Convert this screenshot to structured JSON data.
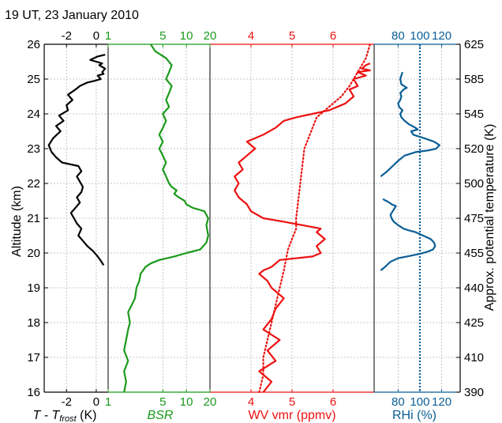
{
  "title": "19 UT, 23 January 2010",
  "left_axis": {
    "label": "Altitude (km)",
    "ticks": [
      "16",
      "17",
      "18",
      "19",
      "20",
      "21",
      "22",
      "23",
      "24",
      "25",
      "26"
    ]
  },
  "right_axis": {
    "label": "Approx. potential temperature (K)",
    "ticks": [
      "390",
      "410",
      "425",
      "440",
      "455",
      "475",
      "500",
      "520",
      "545",
      "585",
      "625"
    ]
  },
  "colors": {
    "temperature": "#000000",
    "bsr": "#1a9a1a",
    "wv": "#ee1111",
    "rhi": "#0a5e96",
    "grid": "#b5b5b5"
  },
  "chart_data": [
    {
      "type": "line",
      "panel": "temperature",
      "xlabel_main": "T - T",
      "xlabel_sub": "frost",
      "xlabel_unit": " (K)",
      "xticks": [
        "-2",
        "0"
      ],
      "xlim": [
        -3.5,
        0.8
      ],
      "ylim": [
        16,
        26
      ],
      "series": [
        {
          "x": [
            0.5,
            0.3,
            0.1,
            -0.2,
            -0.6,
            -0.9,
            -1.2,
            -1.0,
            -1.3,
            -1.5,
            -1.7,
            -1.4,
            -1.1,
            -1.3,
            -1.0,
            -0.9,
            -1.1,
            -1.3,
            -1.0,
            -1.2,
            -2.3,
            -2.7,
            -3.0,
            -3.2,
            -2.9,
            -2.4,
            -2.7,
            -2.2,
            -2.5,
            -1.9,
            -2.0,
            -1.6,
            -1.9,
            -1.4,
            -1.1,
            -0.6,
            -0.1,
            0.3,
            0.1,
            0.5,
            0.4,
            0.6,
            0.2,
            0.4,
            0.0,
            -0.4,
            0.1,
            0.6
          ],
          "y": [
            19.65,
            19.78,
            19.9,
            20.05,
            20.2,
            20.35,
            20.5,
            20.7,
            20.85,
            21.0,
            21.15,
            21.3,
            21.45,
            21.6,
            21.75,
            21.9,
            22.05,
            22.2,
            22.35,
            22.5,
            22.6,
            22.75,
            22.9,
            23.1,
            23.3,
            23.5,
            23.65,
            23.8,
            23.95,
            24.1,
            24.25,
            24.4,
            24.55,
            24.7,
            24.8,
            24.9,
            24.95,
            25.0,
            25.1,
            25.15,
            25.2,
            25.3,
            25.4,
            25.45,
            25.5,
            25.55,
            25.65,
            25.7
          ]
        }
      ]
    },
    {
      "type": "line",
      "panel": "bsr",
      "xlabel": "BSR",
      "xscale": "log",
      "xticks": [
        "1",
        "5",
        "10",
        "20"
      ],
      "xlim": [
        1,
        20
      ],
      "ylim": [
        16,
        26
      ],
      "series": [
        {
          "x": [
            1.6,
            1.7,
            1.6,
            1.8,
            1.6,
            1.7,
            1.8,
            1.9,
            1.8,
            2.0,
            2.2,
            2.3,
            2.5,
            2.6,
            2.8,
            3.0,
            3.5,
            4.5,
            7,
            10,
            15,
            18,
            19,
            18,
            19,
            17,
            12,
            10,
            9.5,
            8,
            7,
            7.5,
            6.5,
            6,
            5.5,
            5,
            5.5,
            5,
            4.5,
            5,
            4.5,
            5,
            5.5,
            5,
            6,
            5.5,
            6,
            6.5,
            5.5,
            6,
            6.5,
            5.5,
            4,
            3.5
          ],
          "y": [
            16.0,
            16.3,
            16.6,
            16.9,
            17.2,
            17.5,
            17.8,
            18.0,
            18.3,
            18.5,
            18.7,
            19.0,
            19.2,
            19.4,
            19.5,
            19.6,
            19.7,
            19.8,
            19.9,
            20.0,
            20.1,
            20.3,
            20.5,
            20.8,
            21.0,
            21.2,
            21.3,
            21.4,
            21.5,
            21.6,
            21.7,
            21.8,
            21.9,
            22.0,
            22.2,
            22.4,
            22.6,
            22.8,
            23.0,
            23.2,
            23.4,
            23.6,
            23.8,
            24.0,
            24.2,
            24.4,
            24.6,
            24.8,
            25.0,
            25.2,
            25.4,
            25.6,
            25.8,
            26.0
          ]
        }
      ]
    },
    {
      "type": "line",
      "panel": "wv",
      "xlabel": "WV vmr (ppmv)",
      "xticks": [
        "4",
        "5",
        "6"
      ],
      "xlim": [
        3.0,
        7.0
      ],
      "ylim": [
        16,
        26
      ],
      "series": [
        {
          "style": "solid",
          "x": [
            4.3,
            4.5,
            4.2,
            4.6,
            4.4,
            4.7,
            4.3,
            4.5,
            4.6,
            4.8,
            4.5,
            4.4,
            4.2,
            4.3,
            4.5,
            4.7,
            5.5,
            5.7,
            5.6,
            5.8,
            5.6,
            5.7,
            4.8,
            4.3,
            4.0,
            3.9,
            3.7,
            3.6,
            3.7,
            3.6,
            3.8,
            3.7,
            3.9,
            4.1,
            3.9,
            4.3,
            4.6,
            4.8,
            5.1,
            5.5,
            5.9,
            6.3,
            6.5,
            6.4,
            6.6,
            6.5,
            6.8,
            6.6,
            6.9,
            6.7,
            6.8,
            6.9
          ],
          "y": [
            16.0,
            16.3,
            16.6,
            16.9,
            17.2,
            17.5,
            17.8,
            18.1,
            18.4,
            18.7,
            19.0,
            19.2,
            19.4,
            19.5,
            19.6,
            19.8,
            19.9,
            20.0,
            20.2,
            20.4,
            20.6,
            20.7,
            20.9,
            21.0,
            21.2,
            21.4,
            21.6,
            21.8,
            22.0,
            22.2,
            22.4,
            22.6,
            22.8,
            23.0,
            23.2,
            23.4,
            23.6,
            23.8,
            23.9,
            24.0,
            24.1,
            24.3,
            24.5,
            24.7,
            24.8,
            25.0,
            25.1,
            25.2,
            25.25,
            25.3,
            25.4,
            25.45
          ]
        },
        {
          "style": "dotted",
          "x": [
            4.2,
            4.3,
            4.3,
            4.4,
            4.5,
            4.6,
            4.7,
            4.8,
            4.85,
            4.9,
            5.0,
            5.1,
            5.1,
            5.15,
            5.2,
            5.25,
            5.3,
            5.4,
            5.5,
            5.6,
            5.8,
            6.0,
            6.2,
            6.4,
            6.5,
            6.6,
            6.7,
            6.8,
            6.85,
            6.9
          ],
          "y": [
            16.0,
            16.5,
            17.0,
            17.5,
            18.0,
            18.5,
            19.0,
            19.5,
            19.8,
            20.1,
            20.4,
            20.7,
            21.0,
            21.5,
            22.0,
            22.5,
            23.0,
            23.3,
            23.6,
            23.9,
            24.1,
            24.3,
            24.5,
            24.8,
            25.0,
            25.2,
            25.4,
            25.6,
            25.8,
            26.0
          ]
        }
      ]
    },
    {
      "type": "line",
      "panel": "rhi",
      "xlabel": "RHi (%)",
      "xticks": [
        "80",
        "100",
        "120"
      ],
      "xlim": [
        58,
        137
      ],
      "ylim": [
        16,
        26
      ],
      "reference_line": 100,
      "series": [
        {
          "style": "solid",
          "x": [
            64,
            68,
            73,
            80,
            88,
            96,
            103,
            108,
            112,
            114,
            113,
            110,
            103,
            96,
            90,
            85,
            80,
            76,
            74,
            73,
            75,
            77,
            78,
            74,
            72,
            69,
            66
          ],
          "y": [
            19.5,
            19.6,
            19.75,
            19.85,
            19.9,
            19.95,
            20.0,
            20.05,
            20.1,
            20.2,
            20.3,
            20.4,
            20.5,
            20.6,
            20.65,
            20.7,
            20.8,
            20.9,
            21.0,
            21.1,
            21.2,
            21.3,
            21.35,
            21.4,
            21.45,
            21.5,
            21.55
          ]
        },
        {
          "style": "solid",
          "x": [
            64,
            70,
            75,
            80,
            86,
            96,
            108,
            115,
            118,
            113,
            104,
            94,
            92,
            98,
            96,
            90,
            86,
            83,
            82,
            84,
            81,
            80,
            82,
            83,
            82,
            85,
            88,
            83,
            82,
            84
          ],
          "y": [
            22.2,
            22.35,
            22.5,
            22.65,
            22.8,
            22.9,
            22.95,
            23.0,
            23.1,
            23.2,
            23.3,
            23.4,
            23.5,
            23.55,
            23.6,
            23.7,
            23.8,
            23.9,
            24.0,
            24.1,
            24.2,
            24.3,
            24.4,
            24.5,
            24.6,
            24.7,
            24.75,
            24.85,
            25.0,
            25.2
          ]
        }
      ]
    }
  ]
}
